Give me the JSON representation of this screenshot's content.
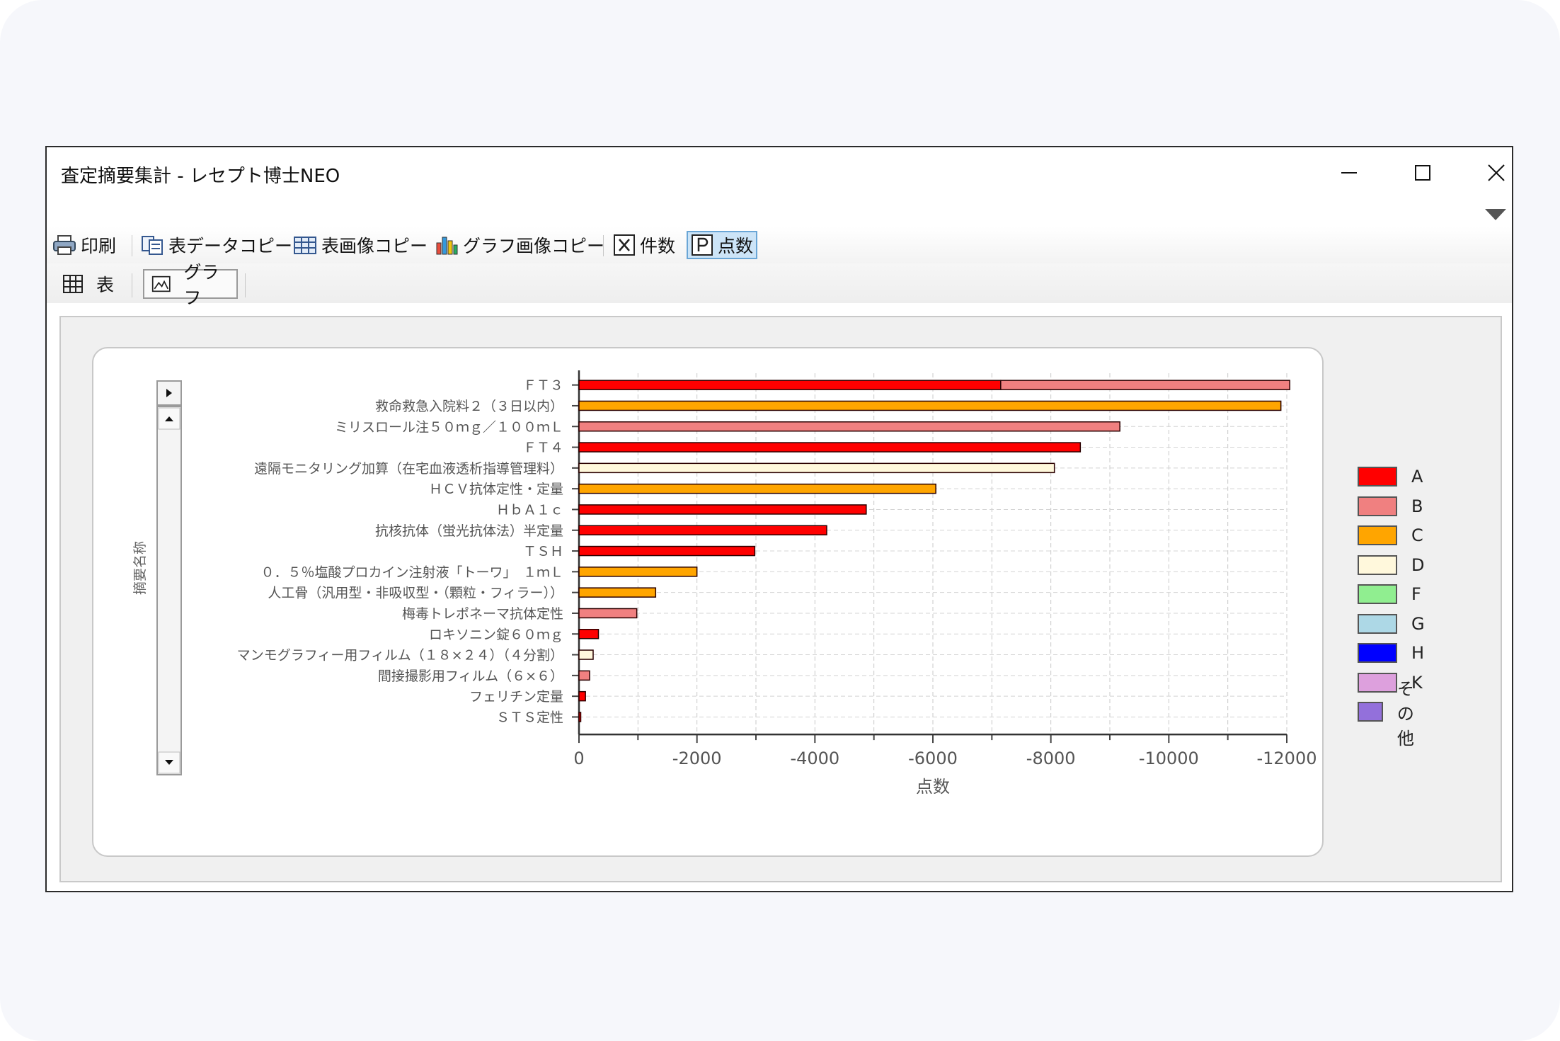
{
  "window": {
    "title": "査定摘要集計 - レセプト博士NEO"
  },
  "toolbar": {
    "print_label": "印刷",
    "table_data_copy_label": "表データコピー",
    "table_image_copy_label": "表画像コピー",
    "graph_image_copy_label": "グラフ画像コピー",
    "count_label": "件数",
    "points_label": "点数",
    "points_active": true
  },
  "view_tabs": {
    "table_label": "表",
    "graph_label": "グラフ",
    "active": "graph"
  },
  "icons": {
    "minimize": "minimize-icon",
    "maximize": "maximize-icon",
    "close": "close-icon",
    "collapse": "collapse-triangle-icon",
    "print": "printer-icon",
    "copy_data": "copy-icon",
    "copy_table": "table-icon",
    "copy_graph": "bar-chart-icon",
    "count": "x-box-icon",
    "points": "p-box-icon",
    "table_view": "grid-icon",
    "graph_view": "image-icon"
  },
  "chart_data": {
    "type": "bar",
    "orientation": "horizontal",
    "stacked": true,
    "xlabel": "点数",
    "ylabel": "摘要名称",
    "xlim": [
      0,
      -12000
    ],
    "x_ticks": [
      "0",
      "-2000",
      "-4000",
      "-6000",
      "-8000",
      "-10000",
      "-12000"
    ],
    "grid": true,
    "legend_position": "right",
    "categories": [
      "ＦＴ３",
      "救命救急入院料２（３日以内）",
      "ミリスロール注５０ｍｇ／１００ｍＬ",
      "ＦＴ４",
      "遠隔モニタリング加算（在宅血液透析指導管理料）",
      "ＨＣＶ抗体定性・定量",
      "ＨｂＡ１ｃ",
      "抗核抗体（蛍光抗体法）半定量",
      "ＴＳＨ",
      "０．５％塩酸プロカイン注射液「トーワ」　１ｍＬ",
      "人工骨（汎用型・非吸収型・（顆粒・フィラー））",
      "梅毒トレポネーマ抗体定性",
      "ロキソニン錠６０ｍｇ",
      "マンモグラフィー用フィルム（１８×２４）（４分割）",
      "間接撮影用フィルム（６×６）",
      "フェリチン定量",
      "ＳＴＳ定性"
    ],
    "series": [
      {
        "name": "A",
        "color": "#ff0000",
        "values": [
          -7150,
          0,
          0,
          -8500,
          0,
          0,
          -4870,
          -4200,
          -2980,
          0,
          0,
          0,
          -330,
          0,
          0,
          -110,
          -30
        ]
      },
      {
        "name": "B",
        "color": "#f08080",
        "values": [
          -4900,
          0,
          -9170,
          0,
          0,
          0,
          0,
          0,
          0,
          0,
          0,
          -980,
          0,
          0,
          -180,
          0,
          0
        ]
      },
      {
        "name": "C",
        "color": "#ffa500",
        "values": [
          0,
          -11900,
          0,
          0,
          0,
          -6050,
          0,
          0,
          0,
          -2000,
          -1300,
          0,
          0,
          0,
          0,
          0,
          0
        ]
      },
      {
        "name": "D",
        "color": "#fff8dc",
        "values": [
          0,
          0,
          0,
          0,
          -8060,
          0,
          0,
          0,
          0,
          0,
          0,
          0,
          0,
          -240,
          0,
          0,
          0
        ]
      },
      {
        "name": "F",
        "color": "#90ee90",
        "values": [
          0,
          0,
          0,
          0,
          0,
          0,
          0,
          0,
          0,
          0,
          0,
          0,
          0,
          0,
          0,
          0,
          0
        ]
      },
      {
        "name": "G",
        "color": "#add8e6",
        "values": [
          0,
          0,
          0,
          0,
          0,
          0,
          0,
          0,
          0,
          0,
          0,
          0,
          0,
          0,
          0,
          0,
          0
        ]
      },
      {
        "name": "H",
        "color": "#0000ff",
        "values": [
          0,
          0,
          0,
          0,
          0,
          0,
          0,
          0,
          0,
          0,
          0,
          0,
          0,
          0,
          0,
          0,
          0
        ]
      },
      {
        "name": "K",
        "color": "#dda0dd",
        "values": [
          0,
          0,
          0,
          0,
          0,
          0,
          0,
          0,
          0,
          0,
          0,
          0,
          0,
          0,
          0,
          0,
          0
        ]
      },
      {
        "name": "その他",
        "color": "#9370db",
        "values": [
          0,
          0,
          0,
          0,
          0,
          0,
          0,
          0,
          0,
          0,
          0,
          0,
          0,
          0,
          0,
          0,
          0
        ]
      }
    ]
  }
}
